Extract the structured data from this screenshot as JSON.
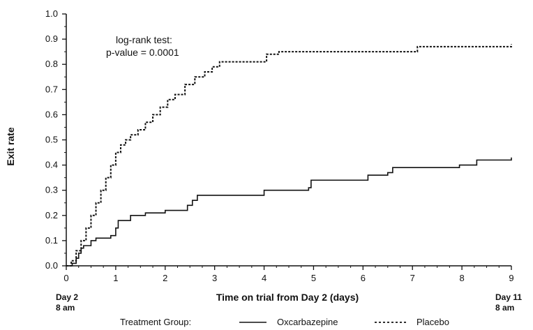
{
  "chart_data": {
    "type": "line",
    "ylabel": "Exit rate",
    "xlabel": "Time on trial from Day 2 (days)",
    "xlim": [
      0,
      9
    ],
    "ylim": [
      0,
      1.0
    ],
    "x_ticks": [
      "0",
      "1",
      "2",
      "3",
      "4",
      "5",
      "6",
      "7",
      "8",
      "9"
    ],
    "y_ticks": [
      "0.0",
      "0.1",
      "0.2",
      "0.3",
      "0.4",
      "0.5",
      "0.6",
      "0.7",
      "0.8",
      "0.9",
      "1.0"
    ],
    "x_start_label": [
      "Day 2",
      "8 am"
    ],
    "x_end_label": [
      "Day 11",
      "8 am"
    ],
    "annotation": [
      "log-rank test:",
      "p-value = 0.0001"
    ],
    "legend_title": "Treatment Group:",
    "grid": false,
    "series": [
      {
        "name": "Oxcarbazepine",
        "line_style": "solid",
        "points": [
          [
            0,
            0
          ],
          [
            0.12,
            0.01
          ],
          [
            0.2,
            0.03
          ],
          [
            0.25,
            0.05
          ],
          [
            0.3,
            0.07
          ],
          [
            0.35,
            0.08
          ],
          [
            0.5,
            0.1
          ],
          [
            0.6,
            0.11
          ],
          [
            0.9,
            0.12
          ],
          [
            1.0,
            0.15
          ],
          [
            1.05,
            0.18
          ],
          [
            1.3,
            0.2
          ],
          [
            1.6,
            0.21
          ],
          [
            2.0,
            0.22
          ],
          [
            2.45,
            0.24
          ],
          [
            2.55,
            0.26
          ],
          [
            2.65,
            0.28
          ],
          [
            3.3,
            0.28
          ],
          [
            4.0,
            0.3
          ],
          [
            4.9,
            0.31
          ],
          [
            4.95,
            0.34
          ],
          [
            5.9,
            0.34
          ],
          [
            6.1,
            0.36
          ],
          [
            6.5,
            0.37
          ],
          [
            6.6,
            0.39
          ],
          [
            7.9,
            0.39
          ],
          [
            7.95,
            0.4
          ],
          [
            8.3,
            0.42
          ],
          [
            9.0,
            0.43
          ]
        ]
      },
      {
        "name": "Placebo",
        "line_style": "dotted",
        "points": [
          [
            0,
            0
          ],
          [
            0.1,
            0.02
          ],
          [
            0.2,
            0.06
          ],
          [
            0.3,
            0.1
          ],
          [
            0.4,
            0.15
          ],
          [
            0.5,
            0.2
          ],
          [
            0.6,
            0.25
          ],
          [
            0.7,
            0.3
          ],
          [
            0.8,
            0.35
          ],
          [
            0.9,
            0.4
          ],
          [
            1.0,
            0.45
          ],
          [
            1.1,
            0.48
          ],
          [
            1.2,
            0.5
          ],
          [
            1.3,
            0.52
          ],
          [
            1.45,
            0.54
          ],
          [
            1.6,
            0.57
          ],
          [
            1.75,
            0.6
          ],
          [
            1.9,
            0.63
          ],
          [
            2.05,
            0.66
          ],
          [
            2.2,
            0.68
          ],
          [
            2.4,
            0.72
          ],
          [
            2.6,
            0.75
          ],
          [
            2.8,
            0.77
          ],
          [
            2.95,
            0.79
          ],
          [
            3.1,
            0.81
          ],
          [
            3.3,
            0.81
          ],
          [
            3.95,
            0.81
          ],
          [
            4.05,
            0.84
          ],
          [
            4.3,
            0.85
          ],
          [
            7.0,
            0.85
          ],
          [
            7.1,
            0.87
          ],
          [
            9.0,
            0.88
          ]
        ]
      }
    ]
  }
}
